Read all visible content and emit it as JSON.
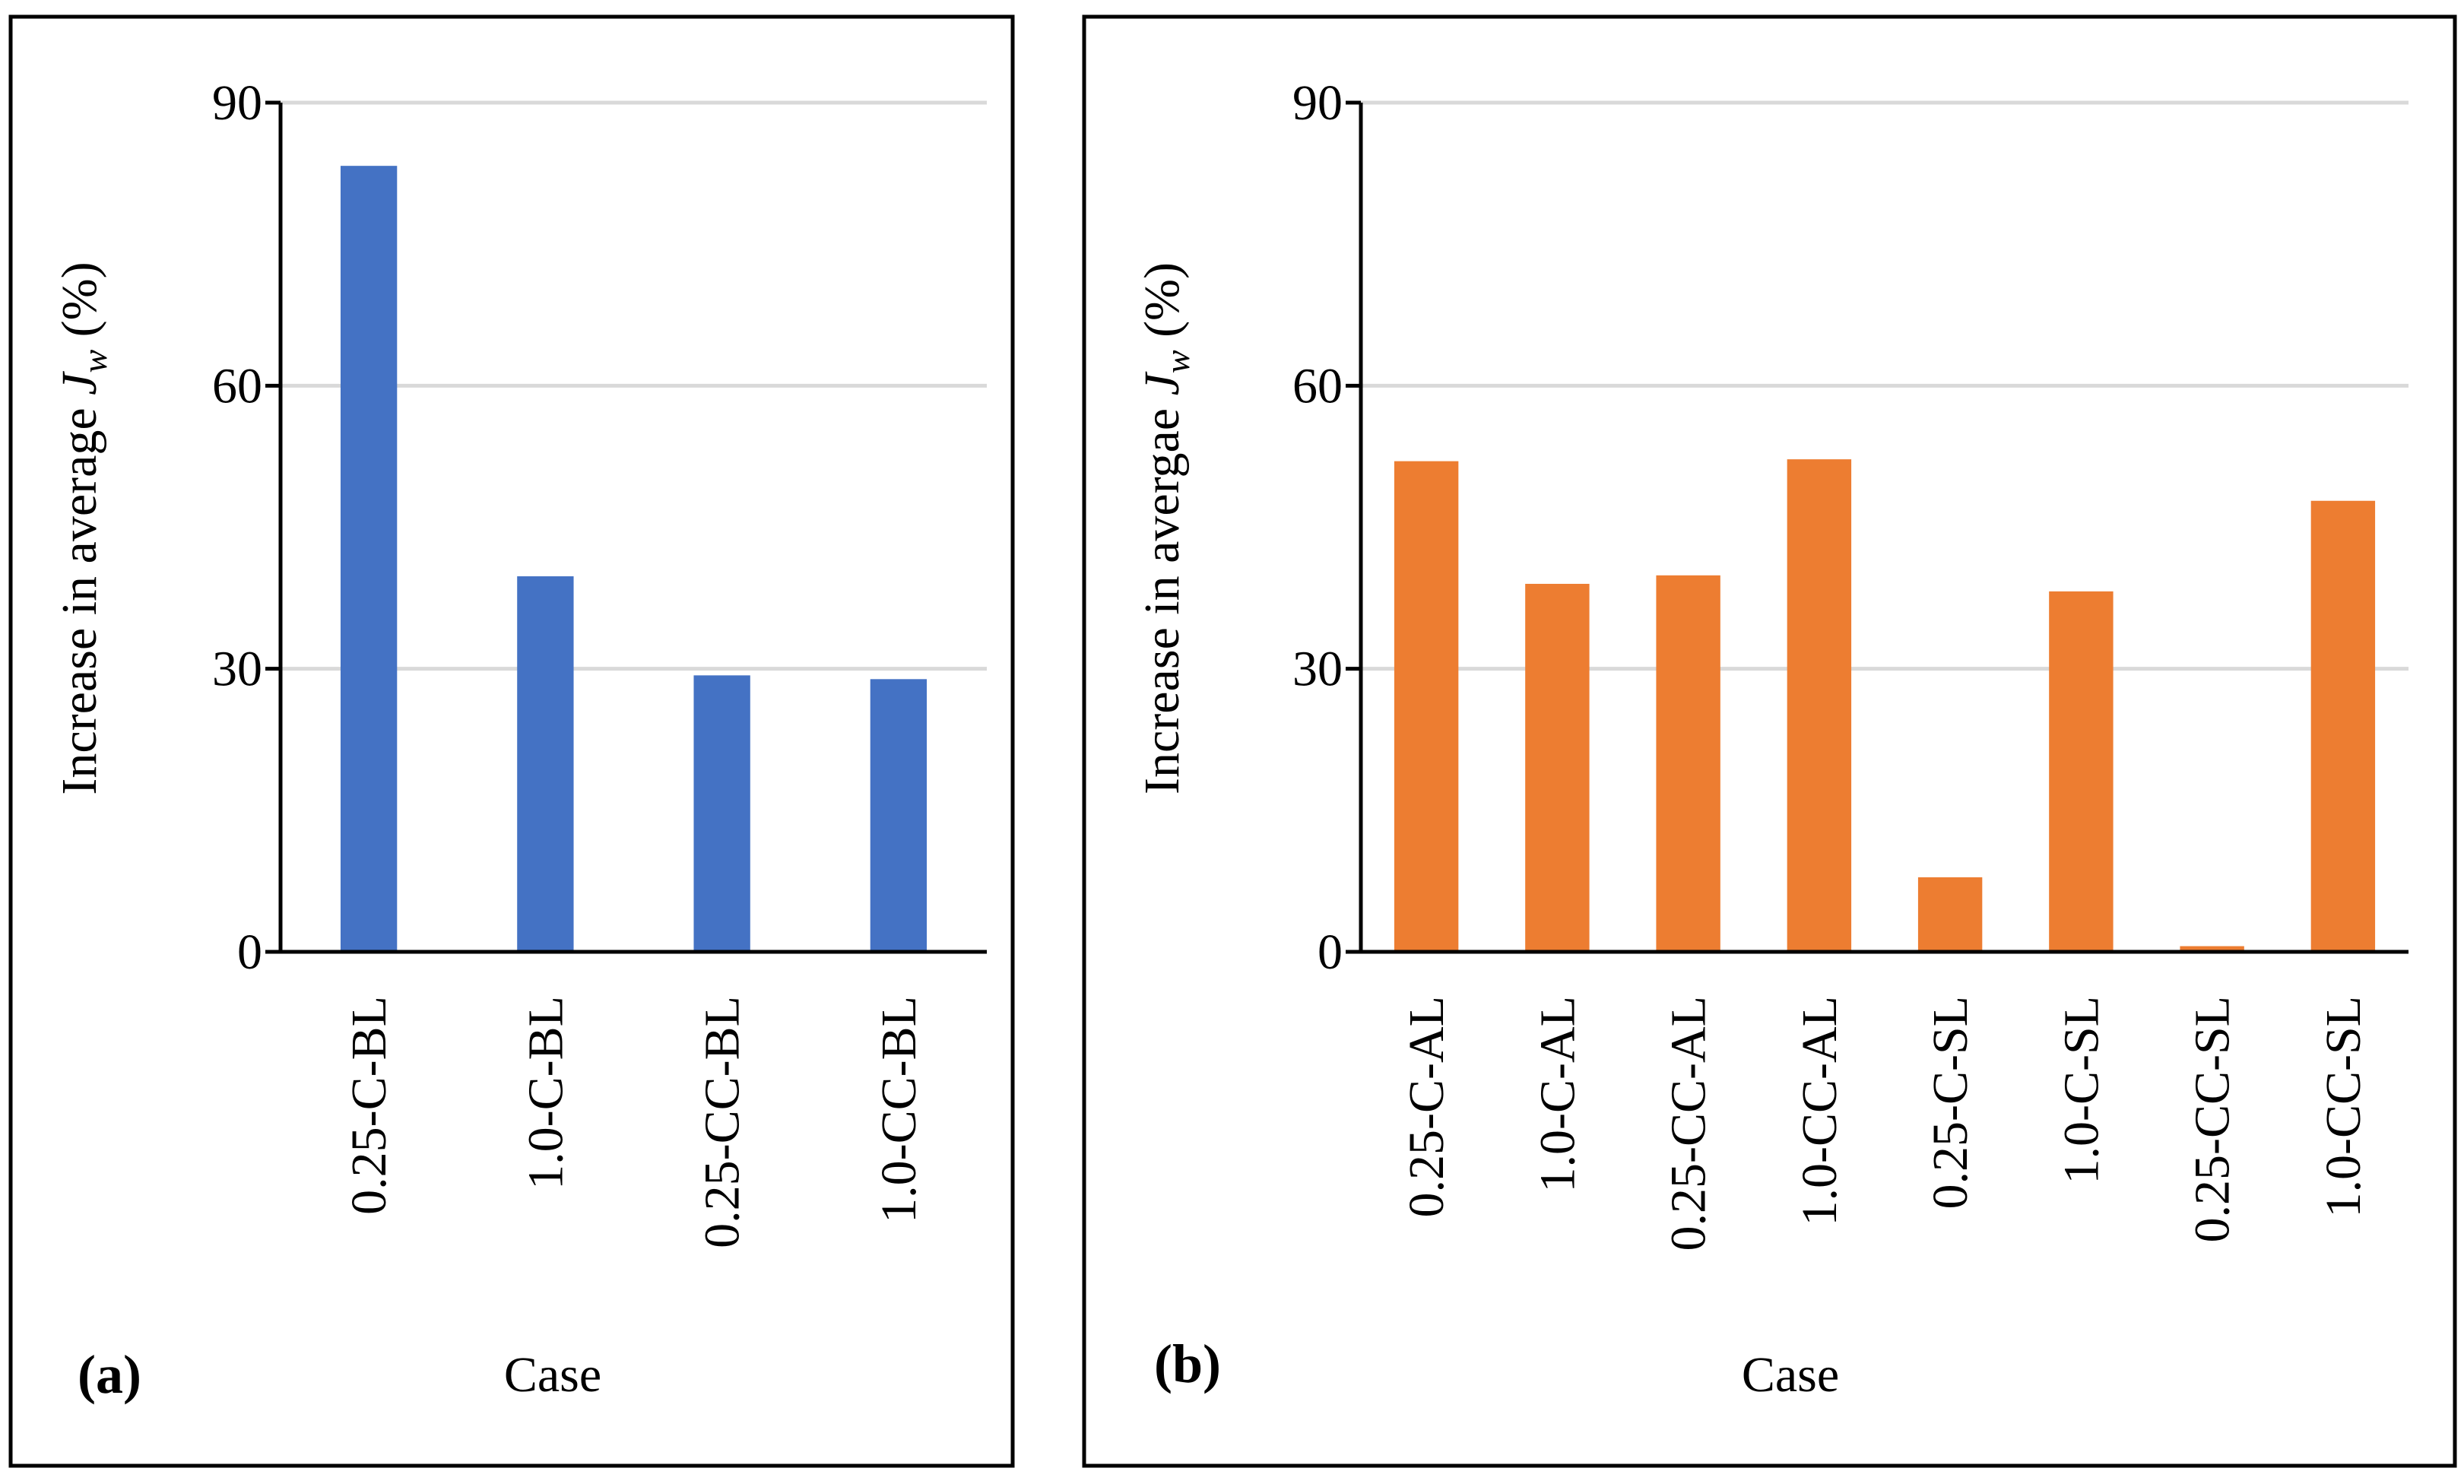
{
  "chart_data": [
    {
      "panel_label": "(a)",
      "type": "bar",
      "categories": [
        "0.25-C-BL",
        "1.0-C-BL",
        "0.25-CC-BL",
        "1.0-CC-BL"
      ],
      "values": [
        83.3,
        39.8,
        29.3,
        28.9
      ],
      "color": "#4472c4",
      "xlabel": "Case",
      "ylabel": "Increase in average ",
      "ylabel_symbol": "J",
      "ylabel_subscript": "w",
      "ylabel_suffix": " (%)",
      "ylim": [
        0,
        90
      ],
      "yticks": [
        "0",
        "30",
        "60",
        "90"
      ],
      "grid": true,
      "legend": "none"
    },
    {
      "panel_label": "(b)",
      "type": "bar",
      "categories": [
        "0.25-C-AL",
        "1.0-C-AL",
        "0.25-CC-AL",
        "1.0-CC-AL",
        "0.25-C-SL",
        "1.0-C-SL",
        "0.25-CC-SL",
        "1.0-CC-SL"
      ],
      "values": [
        52.0,
        39.0,
        39.9,
        52.2,
        7.9,
        38.2,
        0.6,
        47.8
      ],
      "color": "#ed7d31",
      "xlabel": "Case",
      "ylabel": "Increase in avergae ",
      "ylabel_symbol": "J",
      "ylabel_subscript": "w",
      "ylabel_suffix": " (%)",
      "ylim": [
        0,
        90
      ],
      "yticks": [
        "0",
        "30",
        "60",
        "90"
      ],
      "grid": true,
      "legend": "none"
    }
  ]
}
